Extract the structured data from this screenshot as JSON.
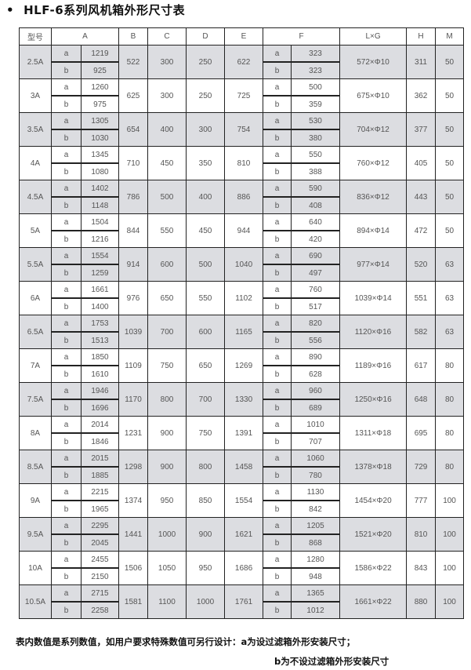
{
  "title": "HLF-6系列风机箱外形尺寸表",
  "header": [
    "型号",
    "A",
    "B",
    "C",
    "D",
    "E",
    "F",
    "L×G",
    "H",
    "M"
  ],
  "sub_labels": [
    "a",
    "b"
  ],
  "rows": [
    {
      "model": "2.5A",
      "A": [
        "1219",
        "925"
      ],
      "B": "522",
      "C": "300",
      "D": "250",
      "E": "622",
      "F": [
        "323",
        "323"
      ],
      "LG": "572×Φ10",
      "H": "311",
      "M": "50"
    },
    {
      "model": "3A",
      "A": [
        "1260",
        "975"
      ],
      "B": "625",
      "C": "300",
      "D": "250",
      "E": "725",
      "F": [
        "500",
        "359"
      ],
      "LG": "675×Φ10",
      "H": "362",
      "M": "50"
    },
    {
      "model": "3.5A",
      "A": [
        "1305",
        "1030"
      ],
      "B": "654",
      "C": "400",
      "D": "300",
      "E": "754",
      "F": [
        "530",
        "380"
      ],
      "LG": "704×Φ12",
      "H": "377",
      "M": "50"
    },
    {
      "model": "4A",
      "A": [
        "1345",
        "1080"
      ],
      "B": "710",
      "C": "450",
      "D": "350",
      "E": "810",
      "F": [
        "550",
        "388"
      ],
      "LG": "760×Φ12",
      "H": "405",
      "M": "50"
    },
    {
      "model": "4.5A",
      "A": [
        "1402",
        "1148"
      ],
      "B": "786",
      "C": "500",
      "D": "400",
      "E": "886",
      "F": [
        "590",
        "408"
      ],
      "LG": "836×Φ12",
      "H": "443",
      "M": "50"
    },
    {
      "model": "5A",
      "A": [
        "1504",
        "1216"
      ],
      "B": "844",
      "C": "550",
      "D": "450",
      "E": "944",
      "F": [
        "640",
        "420"
      ],
      "LG": "894×Φ14",
      "H": "472",
      "M": "50"
    },
    {
      "model": "5.5A",
      "A": [
        "1554",
        "1259"
      ],
      "B": "914",
      "C": "600",
      "D": "500",
      "E": "1040",
      "F": [
        "690",
        "497"
      ],
      "LG": "977×Φ14",
      "H": "520",
      "M": "63"
    },
    {
      "model": "6A",
      "A": [
        "1661",
        "1400"
      ],
      "B": "976",
      "C": "650",
      "D": "550",
      "E": "1102",
      "F": [
        "760",
        "517"
      ],
      "LG": "1039×Φ14",
      "H": "551",
      "M": "63"
    },
    {
      "model": "6.5A",
      "A": [
        "1753",
        "1513"
      ],
      "B": "1039",
      "C": "700",
      "D": "600",
      "E": "1165",
      "F": [
        "820",
        "556"
      ],
      "LG": "1120×Φ16",
      "H": "582",
      "M": "63"
    },
    {
      "model": "7A",
      "A": [
        "1850",
        "1610"
      ],
      "B": "1109",
      "C": "750",
      "D": "650",
      "E": "1269",
      "F": [
        "890",
        "628"
      ],
      "LG": "1189×Φ16",
      "H": "617",
      "M": "80"
    },
    {
      "model": "7.5A",
      "A": [
        "1946",
        "1696"
      ],
      "B": "1170",
      "C": "800",
      "D": "700",
      "E": "1330",
      "F": [
        "960",
        "689"
      ],
      "LG": "1250×Φ16",
      "H": "648",
      "M": "80"
    },
    {
      "model": "8A",
      "A": [
        "2014",
        "1846"
      ],
      "B": "1231",
      "C": "900",
      "D": "750",
      "E": "1391",
      "F": [
        "1010",
        "707"
      ],
      "LG": "1311×Φ18",
      "H": "695",
      "M": "80"
    },
    {
      "model": "8.5A",
      "A": [
        "2015",
        "1885"
      ],
      "B": "1298",
      "C": "900",
      "D": "800",
      "E": "1458",
      "F": [
        "1060",
        "780"
      ],
      "LG": "1378×Φ18",
      "H": "729",
      "M": "80"
    },
    {
      "model": "9A",
      "A": [
        "2215",
        "1965"
      ],
      "B": "1374",
      "C": "950",
      "D": "850",
      "E": "1554",
      "F": [
        "1130",
        "842"
      ],
      "LG": "1454×Φ20",
      "H": "777",
      "M": "100"
    },
    {
      "model": "9.5A",
      "A": [
        "2295",
        "2045"
      ],
      "B": "1441",
      "C": "1000",
      "D": "900",
      "E": "1621",
      "F": [
        "1205",
        "868"
      ],
      "LG": "1521×Φ20",
      "H": "810",
      "M": "100"
    },
    {
      "model": "10A",
      "A": [
        "2455",
        "2150"
      ],
      "B": "1506",
      "C": "1050",
      "D": "950",
      "E": "1686",
      "F": [
        "1280",
        "948"
      ],
      "LG": "1586×Φ22",
      "H": "843",
      "M": "100"
    },
    {
      "model": "10.5A",
      "A": [
        "2715",
        "2258"
      ],
      "B": "1581",
      "C": "1100",
      "D": "1000",
      "E": "1761",
      "F": [
        "1365",
        "1012"
      ],
      "LG": "1661×Φ22",
      "H": "880",
      "M": "100"
    }
  ],
  "notes": [
    "表内数值是系列数值，如用户要求特殊数值可另行设计：a为设过滤箱外形安装尺寸；",
    "b为不设过滤箱外形安装尺寸"
  ]
}
